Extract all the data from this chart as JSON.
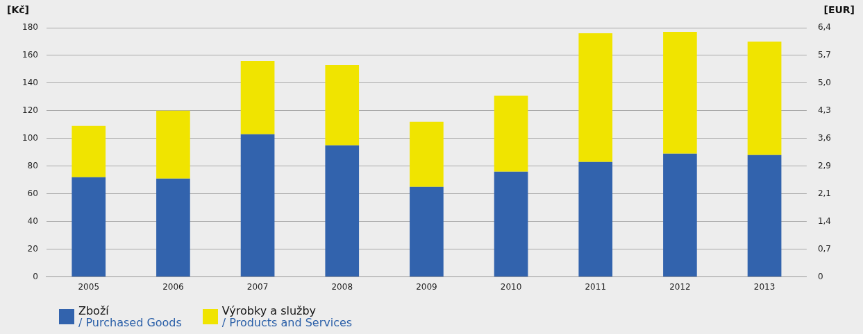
{
  "chart_data": {
    "type": "bar",
    "stacked": true,
    "ylabel": "[Kč]",
    "y2label": "[EUR]",
    "categories": [
      "2005",
      "2006",
      "2007",
      "2008",
      "2009",
      "2010",
      "2011",
      "2012",
      "2013"
    ],
    "series": [
      {
        "name": "Zboží\n/ Purchased Goods",
        "color": "#3263ad",
        "values": [
          72,
          71,
          103,
          95,
          65,
          76,
          83,
          89,
          88
        ]
      },
      {
        "name": "Výrobky a služby\n/ Products and Services",
        "color": "#f0e400",
        "values": [
          37,
          49,
          53,
          58,
          47,
          55,
          93,
          88,
          82
        ]
      }
    ],
    "ylim": [
      0,
      180
    ],
    "yticks": [
      0,
      20,
      40,
      60,
      80,
      100,
      120,
      140,
      160,
      180
    ],
    "y2lim": [
      0,
      6.4
    ],
    "y2ticks": [
      0,
      {
        "value": 0.71,
        "label": "0,7"
      },
      {
        "value": 1.42,
        "label": "1,4"
      },
      {
        "value": 2.13,
        "label": "2,1"
      },
      {
        "value": 2.85,
        "label": "2,9"
      },
      {
        "value": 3.56,
        "label": "3,6"
      },
      {
        "value": 4.27,
        "label": "4,3"
      },
      {
        "value": 4.98,
        "label": "5,0"
      },
      {
        "value": 5.69,
        "label": "5,7"
      },
      {
        "value": 6.4,
        "label": "6,4"
      }
    ],
    "grid": "y",
    "legend": "bottom left"
  }
}
